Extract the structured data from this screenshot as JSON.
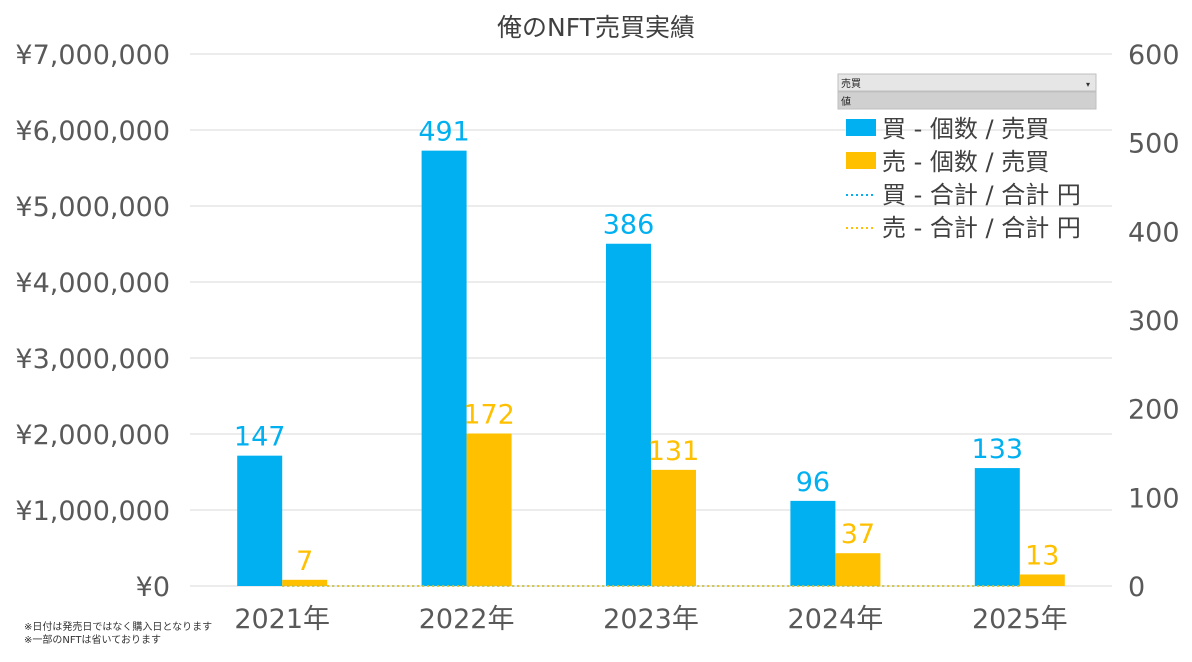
{
  "chart_data": {
    "type": "bar+line",
    "title": "俺のNFT売買実績",
    "categories": [
      "2021年",
      "2022年",
      "2023年",
      "2024年",
      "2025年"
    ],
    "series": [
      {
        "name": "買 - 個数 / 売買",
        "kind": "bar",
        "axis": "right",
        "color": "#00b0f0",
        "values": [
          147,
          491,
          386,
          96,
          133
        ]
      },
      {
        "name": "売 - 個数 / 売買",
        "kind": "bar",
        "axis": "right",
        "color": "#ffc000",
        "values": [
          7,
          172,
          131,
          37,
          13
        ]
      },
      {
        "name": "買 - 合計 / 合計 円",
        "kind": "line",
        "style": "dotted",
        "axis": "left",
        "color": "#00b0f0",
        "values": [
          0,
          0,
          0,
          0,
          0
        ]
      },
      {
        "name": "売 - 合計 / 合計 円",
        "kind": "line",
        "style": "dotted",
        "axis": "left",
        "color": "#ffc000",
        "values": [
          0,
          0,
          0,
          0,
          0
        ]
      }
    ],
    "y_left": {
      "ylim": [
        0,
        7000000
      ],
      "ticks": [
        0,
        1000000,
        2000000,
        3000000,
        4000000,
        5000000,
        6000000,
        7000000
      ],
      "tick_labels": [
        "¥0",
        "¥1,000,000",
        "¥2,000,000",
        "¥3,000,000",
        "¥4,000,000",
        "¥5,000,000",
        "¥6,000,000",
        "¥7,000,000"
      ]
    },
    "y_right": {
      "ylim": [
        0,
        600
      ],
      "ticks": [
        0,
        100,
        200,
        300,
        400,
        500,
        600
      ],
      "tick_labels": [
        "0",
        "100",
        "200",
        "300",
        "400",
        "500",
        "600"
      ]
    },
    "grid": true,
    "legend_position": "top-right"
  },
  "filter": {
    "field_label": "売買",
    "value_label": "値"
  },
  "notes": [
    "※日付は発売日ではなく購入日となります",
    "※一部のNFTは省いております"
  ],
  "colors": {
    "buy": "#00b0f0",
    "sell": "#ffc000",
    "grid": "#d9d9d9",
    "text": "#595959"
  }
}
